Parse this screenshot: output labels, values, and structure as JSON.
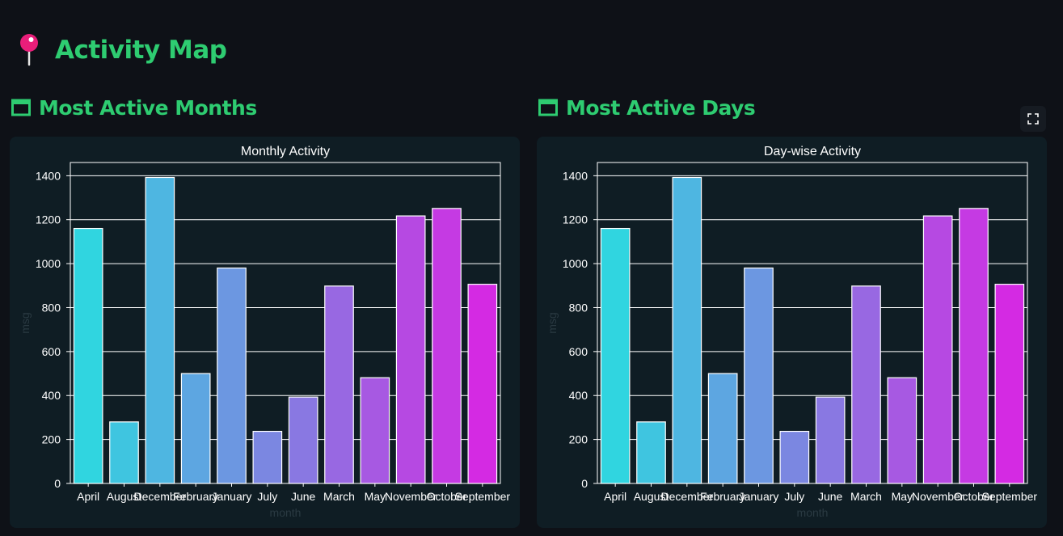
{
  "page": {
    "title": "Activity Map",
    "title_icon": "pushpin-icon"
  },
  "sections": [
    {
      "heading": "Most Active Months",
      "icon": "window-icon"
    },
    {
      "heading": "Most Active Days",
      "icon": "window-icon"
    }
  ],
  "toolbar": {
    "fullscreen_icon": "fullscreen-icon"
  },
  "colors": {
    "background": "#0e1117",
    "card": "#0f1d24",
    "heading": "#2ecc71",
    "pin": "#e91e7a",
    "gradient_start": "#30d5e0",
    "gradient_end": "#d42ae3"
  },
  "chart_data": [
    {
      "type": "bar",
      "title": "Monthly Activity",
      "xlabel": "month",
      "ylabel": "msg",
      "categories": [
        "April",
        "August",
        "December",
        "February",
        "January",
        "July",
        "June",
        "March",
        "May",
        "November",
        "October",
        "September"
      ],
      "values": [
        1160,
        280,
        1392,
        500,
        980,
        237,
        393,
        898,
        481,
        1217,
        1251,
        906
      ],
      "ylim": [
        0,
        1460
      ],
      "yticks": [
        0,
        200,
        400,
        600,
        800,
        1000,
        1200,
        1400
      ],
      "grid": true,
      "legend": "none"
    },
    {
      "type": "bar",
      "title": "Day-wise Activity",
      "xlabel": "month",
      "ylabel": "msg",
      "categories": [
        "April",
        "August",
        "December",
        "February",
        "January",
        "July",
        "June",
        "March",
        "May",
        "November",
        "October",
        "September"
      ],
      "values": [
        1160,
        280,
        1392,
        500,
        980,
        237,
        393,
        898,
        481,
        1217,
        1251,
        906
      ],
      "ylim": [
        0,
        1460
      ],
      "yticks": [
        0,
        200,
        400,
        600,
        800,
        1000,
        1200,
        1400
      ],
      "grid": true,
      "legend": "none"
    }
  ]
}
